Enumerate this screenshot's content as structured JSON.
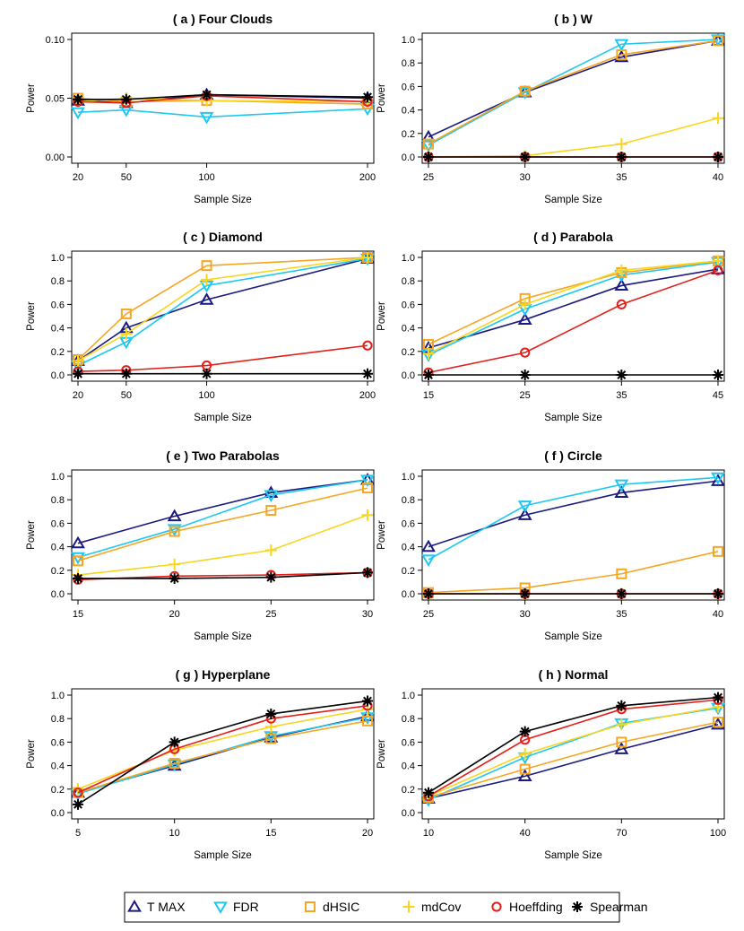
{
  "colors": {
    "T MAX": "#1a1a80",
    "FDR": "#1ec8f0",
    "dHSIC": "#f5a623",
    "mdCov": "#f8d51e",
    "Hoeffding": "#e3201b",
    "Spearman": "#000000"
  },
  "markers": {
    "T MAX": "triangle-up",
    "FDR": "triangle-down",
    "dHSIC": "square",
    "mdCov": "plus",
    "Hoeffding": "circle",
    "Spearman": "asterisk"
  },
  "legend": {
    "position": "bottom",
    "items": [
      "T MAX",
      "FDR",
      "dHSIC",
      "mdCov",
      "Hoeffding",
      "Spearman"
    ]
  },
  "chart_data": [
    {
      "type": "line",
      "title": "( a )  Four Clouds",
      "xlabel": "Sample Size",
      "ylabel": "Power",
      "x": [
        20,
        50,
        100,
        200
      ],
      "xlim": [
        20,
        200
      ],
      "ylim": [
        0,
        0.1
      ],
      "yticks": [
        "0.00",
        "0.05",
        "0.10"
      ],
      "series": [
        {
          "name": "T MAX",
          "values": [
            0.048,
            0.046,
            0.053,
            0.05
          ]
        },
        {
          "name": "FDR",
          "values": [
            0.038,
            0.04,
            0.034,
            0.041
          ]
        },
        {
          "name": "dHSIC",
          "values": [
            0.05,
            0.047,
            0.048,
            0.045
          ]
        },
        {
          "name": "mdCov",
          "values": [
            0.047,
            0.05,
            0.048,
            0.047
          ]
        },
        {
          "name": "Hoeffding",
          "values": [
            0.047,
            0.046,
            0.052,
            0.047
          ]
        },
        {
          "name": "Spearman",
          "values": [
            0.049,
            0.049,
            0.053,
            0.051
          ]
        }
      ]
    },
    {
      "type": "line",
      "title": "( b )  W",
      "xlabel": "Sample Size",
      "ylabel": "Power",
      "x": [
        25,
        30,
        35,
        40
      ],
      "xlim": [
        25,
        40
      ],
      "ylim": [
        0,
        1
      ],
      "yticks": [
        "0.0",
        "0.2",
        "0.4",
        "0.6",
        "0.8",
        "1.0"
      ],
      "series": [
        {
          "name": "T MAX",
          "values": [
            0.17,
            0.55,
            0.85,
            0.99
          ]
        },
        {
          "name": "FDR",
          "values": [
            0.1,
            0.55,
            0.96,
            1.0
          ]
        },
        {
          "name": "dHSIC",
          "values": [
            0.11,
            0.56,
            0.87,
            0.99
          ]
        },
        {
          "name": "mdCov",
          "values": [
            0.0,
            0.01,
            0.11,
            0.33
          ]
        },
        {
          "name": "Hoeffding",
          "values": [
            0.0,
            0.0,
            0.0,
            0.0
          ]
        },
        {
          "name": "Spearman",
          "values": [
            0.0,
            0.0,
            0.0,
            0.0
          ]
        }
      ]
    },
    {
      "type": "line",
      "title": "( c )  Diamond",
      "xlabel": "Sample Size",
      "ylabel": "Power",
      "x": [
        20,
        50,
        100,
        200
      ],
      "xlim": [
        20,
        200
      ],
      "ylim": [
        0,
        1
      ],
      "yticks": [
        "0.0",
        "0.2",
        "0.4",
        "0.6",
        "0.8",
        "1.0"
      ],
      "series": [
        {
          "name": "T MAX",
          "values": [
            0.12,
            0.4,
            0.64,
            0.99
          ]
        },
        {
          "name": "FDR",
          "values": [
            0.08,
            0.28,
            0.76,
            0.99
          ]
        },
        {
          "name": "dHSIC",
          "values": [
            0.13,
            0.52,
            0.93,
            1.0
          ]
        },
        {
          "name": "mdCov",
          "values": [
            0.12,
            0.35,
            0.81,
            1.0
          ]
        },
        {
          "name": "Hoeffding",
          "values": [
            0.03,
            0.04,
            0.08,
            0.25
          ]
        },
        {
          "name": "Spearman",
          "values": [
            0.01,
            0.01,
            0.01,
            0.01
          ]
        }
      ]
    },
    {
      "type": "line",
      "title": "( d )  Parabola",
      "xlabel": "Sample Size",
      "ylabel": "Power",
      "x": [
        15,
        25,
        35,
        45
      ],
      "xlim": [
        15,
        45
      ],
      "ylim": [
        0,
        1
      ],
      "yticks": [
        "0.0",
        "0.2",
        "0.4",
        "0.6",
        "0.8",
        "1.0"
      ],
      "series": [
        {
          "name": "T MAX",
          "values": [
            0.23,
            0.47,
            0.76,
            0.9
          ]
        },
        {
          "name": "FDR",
          "values": [
            0.17,
            0.56,
            0.85,
            0.96
          ]
        },
        {
          "name": "dHSIC",
          "values": [
            0.26,
            0.65,
            0.87,
            0.97
          ]
        },
        {
          "name": "mdCov",
          "values": [
            0.18,
            0.6,
            0.89,
            0.97
          ]
        },
        {
          "name": "Hoeffding",
          "values": [
            0.02,
            0.19,
            0.6,
            0.89
          ]
        },
        {
          "name": "Spearman",
          "values": [
            0.0,
            0.0,
            0.0,
            0.0
          ]
        }
      ]
    },
    {
      "type": "line",
      "title": "( e )  Two Parabolas",
      "xlabel": "Sample Size",
      "ylabel": "Power",
      "x": [
        15,
        20,
        25,
        30
      ],
      "xlim": [
        15,
        30
      ],
      "ylim": [
        0,
        1
      ],
      "yticks": [
        "0.0",
        "0.2",
        "0.4",
        "0.6",
        "0.8",
        "1.0"
      ],
      "series": [
        {
          "name": "T MAX",
          "values": [
            0.43,
            0.66,
            0.86,
            0.97
          ]
        },
        {
          "name": "FDR",
          "values": [
            0.31,
            0.55,
            0.84,
            0.97
          ]
        },
        {
          "name": "dHSIC",
          "values": [
            0.28,
            0.53,
            0.71,
            0.9
          ]
        },
        {
          "name": "mdCov",
          "values": [
            0.16,
            0.25,
            0.37,
            0.67
          ]
        },
        {
          "name": "Hoeffding",
          "values": [
            0.12,
            0.15,
            0.16,
            0.18
          ]
        },
        {
          "name": "Spearman",
          "values": [
            0.13,
            0.13,
            0.14,
            0.18
          ]
        }
      ]
    },
    {
      "type": "line",
      "title": "( f )  Circle",
      "xlabel": "Sample Size",
      "ylabel": "Power",
      "x": [
        25,
        30,
        35,
        40
      ],
      "xlim": [
        25,
        40
      ],
      "ylim": [
        0,
        1
      ],
      "yticks": [
        "0.0",
        "0.2",
        "0.4",
        "0.6",
        "0.8",
        "1.0"
      ],
      "series": [
        {
          "name": "T MAX",
          "values": [
            0.4,
            0.67,
            0.86,
            0.96
          ]
        },
        {
          "name": "FDR",
          "values": [
            0.29,
            0.75,
            0.93,
            0.99
          ]
        },
        {
          "name": "dHSIC",
          "values": [
            0.01,
            0.05,
            0.17,
            0.36
          ]
        },
        {
          "name": "mdCov",
          "values": [
            0.0,
            0.0,
            0.0,
            0.0
          ]
        },
        {
          "name": "Hoeffding",
          "values": [
            0.0,
            0.0,
            0.0,
            0.0
          ]
        },
        {
          "name": "Spearman",
          "values": [
            0.0,
            0.0,
            0.0,
            0.0
          ]
        }
      ]
    },
    {
      "type": "line",
      "title": "( g )  Hyperplane",
      "xlabel": "Sample Size",
      "ylabel": "Power",
      "x": [
        5,
        10,
        15,
        20
      ],
      "xlim": [
        5,
        20
      ],
      "ylim": [
        0,
        1
      ],
      "yticks": [
        "0.0",
        "0.2",
        "0.4",
        "0.6",
        "0.8",
        "1.0"
      ],
      "series": [
        {
          "name": "T MAX",
          "values": [
            0.17,
            0.4,
            0.64,
            0.82
          ]
        },
        {
          "name": "FDR",
          "values": [
            0.16,
            0.41,
            0.65,
            0.81
          ]
        },
        {
          "name": "dHSIC",
          "values": [
            0.17,
            0.42,
            0.63,
            0.78
          ]
        },
        {
          "name": "mdCov",
          "values": [
            0.2,
            0.53,
            0.73,
            0.88
          ]
        },
        {
          "name": "Hoeffding",
          "values": [
            0.17,
            0.54,
            0.8,
            0.91
          ]
        },
        {
          "name": "Spearman",
          "values": [
            0.07,
            0.6,
            0.84,
            0.95
          ]
        }
      ]
    },
    {
      "type": "line",
      "title": "( h )  Normal",
      "xlabel": "Sample Size",
      "ylabel": "Power",
      "x": [
        10,
        40,
        70,
        100
      ],
      "xlim": [
        10,
        100
      ],
      "ylim": [
        0,
        1
      ],
      "yticks": [
        "0.0",
        "0.2",
        "0.4",
        "0.6",
        "0.8",
        "1.0"
      ],
      "series": [
        {
          "name": "T MAX",
          "values": [
            0.12,
            0.31,
            0.54,
            0.75
          ]
        },
        {
          "name": "FDR",
          "values": [
            0.11,
            0.47,
            0.76,
            0.89
          ]
        },
        {
          "name": "dHSIC",
          "values": [
            0.13,
            0.37,
            0.6,
            0.77
          ]
        },
        {
          "name": "mdCov",
          "values": [
            0.14,
            0.5,
            0.75,
            0.9
          ]
        },
        {
          "name": "Hoeffding",
          "values": [
            0.14,
            0.62,
            0.88,
            0.96
          ]
        },
        {
          "name": "Spearman",
          "values": [
            0.17,
            0.69,
            0.91,
            0.98
          ]
        }
      ]
    }
  ]
}
